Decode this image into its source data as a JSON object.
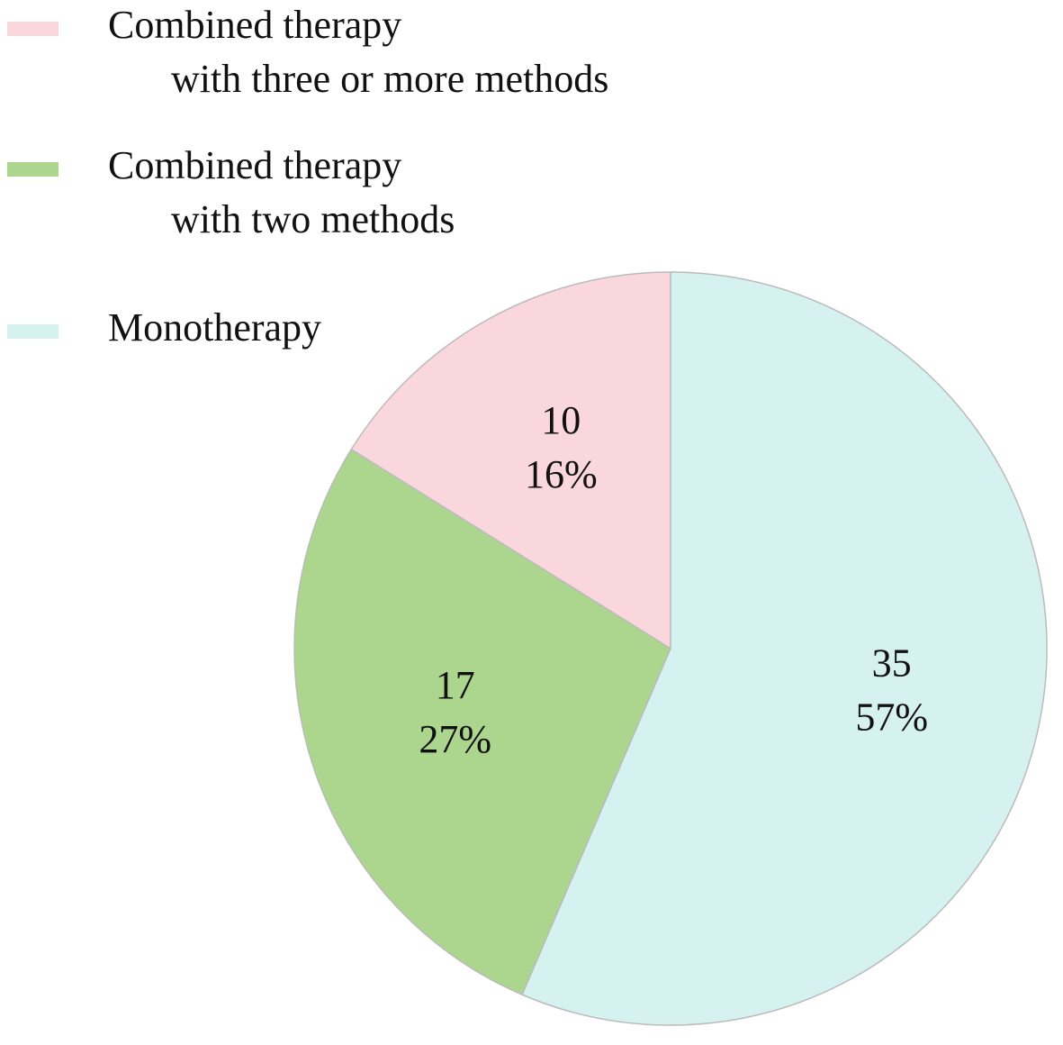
{
  "chart_data": {
    "type": "pie",
    "categories": [
      "Combined therapy\nwith three or more methods",
      "Combined therapy\nwith two methods",
      "Monotherapy"
    ],
    "values": [
      10,
      17,
      35
    ],
    "percent_labels": [
      "16%",
      "27%",
      "57%"
    ],
    "colors": [
      "#f9d7dc",
      "#acd58e",
      "#d5f2f0"
    ],
    "direction": "counterclockwise",
    "legend": "top-left"
  }
}
